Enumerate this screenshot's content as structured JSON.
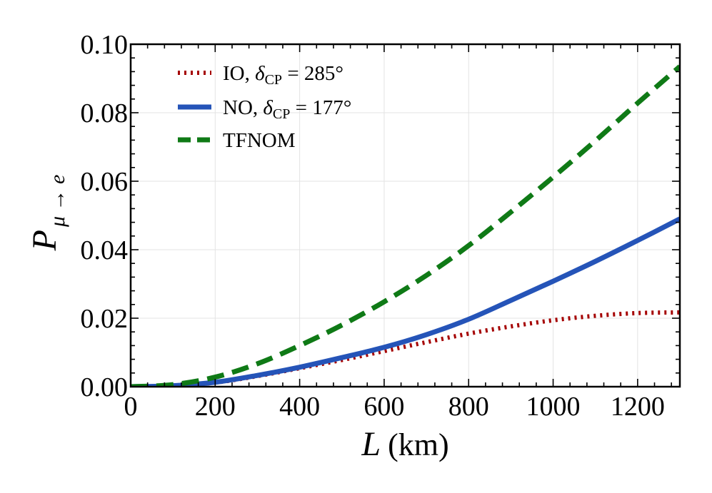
{
  "chart_data": {
    "type": "line",
    "xlabel": {
      "symbol": "L",
      "unit": "(km)"
    },
    "ylabel": {
      "symbol": "P",
      "subscript": "μ → e"
    },
    "xlim": [
      0,
      1300
    ],
    "ylim": [
      0,
      0.1
    ],
    "xticks": [
      0,
      200,
      400,
      600,
      800,
      1000,
      1200
    ],
    "xtick_labels": [
      "0",
      "200",
      "400",
      "600",
      "800",
      "1000",
      "1200"
    ],
    "yticks": [
      0,
      0.02,
      0.04,
      0.06,
      0.08,
      0.1
    ],
    "ytick_labels": [
      "0.00",
      "0.02",
      "0.04",
      "0.06",
      "0.08",
      "0.10"
    ],
    "grid": true,
    "legend_position": "top-left",
    "series": [
      {
        "name": "IO, δCP = 285°",
        "label_parts": [
          "IO, ",
          "δ",
          "CP",
          " = 285°"
        ],
        "style": "dotted",
        "color": "#a50000",
        "x": [
          0,
          100,
          200,
          300,
          400,
          500,
          600,
          700,
          800,
          900,
          1000,
          1100,
          1200,
          1300
        ],
        "y": [
          0,
          0.0003,
          0.0012,
          0.0031,
          0.0054,
          0.0078,
          0.0104,
          0.013,
          0.0155,
          0.0176,
          0.0194,
          0.0207,
          0.0215,
          0.0217
        ]
      },
      {
        "name": "NO, δCP = 177°",
        "label_parts": [
          "NO, ",
          "δ",
          "CP",
          " = 177°"
        ],
        "style": "solid",
        "color": "#2554b8",
        "x": [
          0,
          100,
          200,
          300,
          400,
          500,
          600,
          700,
          800,
          900,
          1000,
          1100,
          1200,
          1300
        ],
        "y": [
          0,
          0.0003,
          0.0013,
          0.0033,
          0.0057,
          0.0085,
          0.0115,
          0.0152,
          0.0197,
          0.0252,
          0.0308,
          0.0366,
          0.0427,
          0.049
        ]
      },
      {
        "name": "TFNOM",
        "label_parts": [
          "TFNOM"
        ],
        "style": "dashed",
        "color": "#0f7a16",
        "x": [
          0,
          100,
          200,
          300,
          400,
          500,
          600,
          700,
          800,
          900,
          1000,
          1100,
          1200,
          1300
        ],
        "y": [
          0,
          0.0006,
          0.0028,
          0.0067,
          0.012,
          0.018,
          0.0248,
          0.0325,
          0.0412,
          0.051,
          0.0612,
          0.0718,
          0.0828,
          0.0935
        ]
      }
    ]
  }
}
